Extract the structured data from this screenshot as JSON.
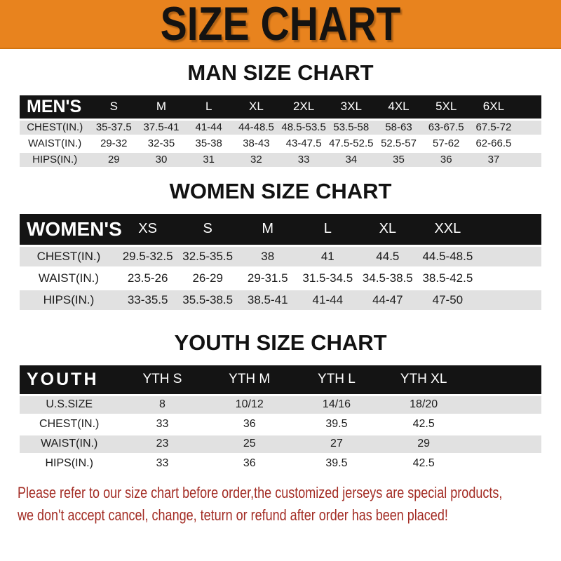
{
  "banner": {
    "title": "SIZE CHART"
  },
  "sections": [
    {
      "heading": "MAN SIZE CHART",
      "table": {
        "label": "MEN'S",
        "columns": [
          "S",
          "M",
          "L",
          "XL",
          "2XL",
          "3XL",
          "4XL",
          "5XL",
          "6XL"
        ],
        "rows": [
          {
            "label": "CHEST(IN.)",
            "values": [
              "35-37.5",
              "37.5-41",
              "41-44",
              "44-48.5",
              "48.5-53.5",
              "53.5-58",
              "58-63",
              "63-67.5",
              "67.5-72"
            ]
          },
          {
            "label": "WAIST(IN.)",
            "values": [
              "29-32",
              "32-35",
              "35-38",
              "38-43",
              "43-47.5",
              "47.5-52.5",
              "52.5-57",
              "57-62",
              "62-66.5"
            ]
          },
          {
            "label": "HIPS(IN.)",
            "values": [
              "29",
              "30",
              "31",
              "32",
              "33",
              "34",
              "35",
              "36",
              "37"
            ]
          }
        ]
      }
    },
    {
      "heading": "WOMEN SIZE CHART",
      "table": {
        "label": "WOMEN'S",
        "columns": [
          "XS",
          "S",
          "M",
          "L",
          "XL",
          "XXL"
        ],
        "rows": [
          {
            "label": "CHEST(IN.)",
            "values": [
              "29.5-32.5",
              "32.5-35.5",
              "38",
              "41",
              "44.5",
              "44.5-48.5"
            ]
          },
          {
            "label": "WAIST(IN.)",
            "values": [
              "23.5-26",
              "26-29",
              "29-31.5",
              "31.5-34.5",
              "34.5-38.5",
              "38.5-42.5"
            ]
          },
          {
            "label": "HIPS(IN.)",
            "values": [
              "33-35.5",
              "35.5-38.5",
              "38.5-41",
              "41-44",
              "44-47",
              "47-50"
            ]
          }
        ]
      }
    },
    {
      "heading": "YOUTH SIZE CHART",
      "table": {
        "label": "YOUTH",
        "columns": [
          "YTH S",
          "YTH M",
          "YTH L",
          "YTH XL"
        ],
        "rows": [
          {
            "label": "U.S.SIZE",
            "values": [
              "8",
              "10/12",
              "14/16",
              "18/20"
            ]
          },
          {
            "label": "CHEST(IN.)",
            "values": [
              "33",
              "36",
              "39.5",
              "42.5"
            ]
          },
          {
            "label": "WAIST(IN.)",
            "values": [
              "23",
              "25",
              "27",
              "29"
            ]
          },
          {
            "label": "HIPS(IN.)",
            "values": [
              "33",
              "36",
              "39.5",
              "42.5"
            ]
          }
        ]
      }
    }
  ],
  "footer": {
    "line1": "Please refer to our size chart before order,the customized jerseys are special products,",
    "line2": "we don't accept cancel, change, teturn or refund after order has been placed!"
  },
  "colors": {
    "banner_bg": "#E8831E",
    "header_bar": "#141414",
    "row_shade": "#E1E1E1",
    "note_red": "#A32C24"
  }
}
